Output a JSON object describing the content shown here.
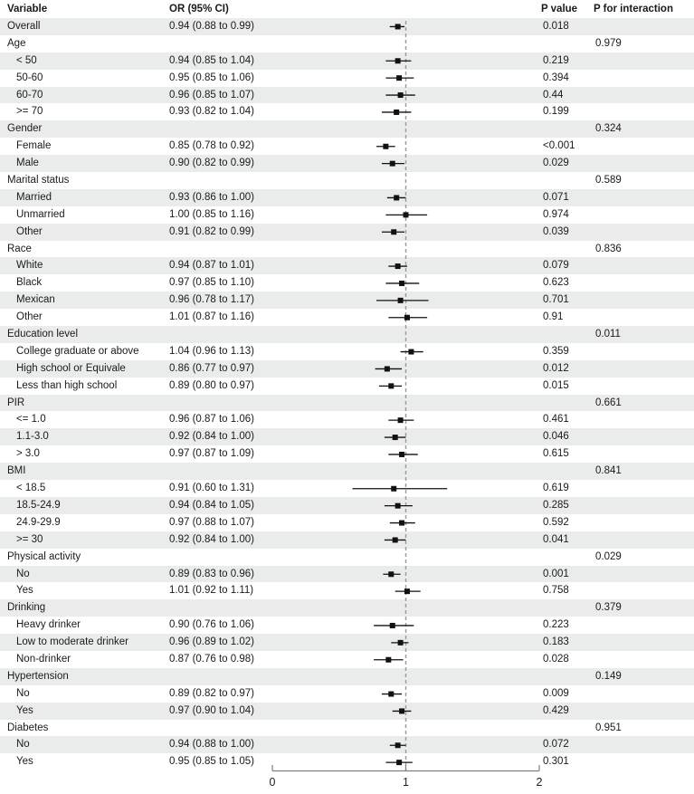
{
  "header": {
    "variable": "Variable",
    "or_ci": "OR (95% CI)",
    "p_value": "P value",
    "p_interaction": "P for interaction"
  },
  "colors": {
    "row_shade": "#eaeceb",
    "marker": "#111111",
    "ci_line": "#111111",
    "reference_line": "#9a9a9a",
    "axis_line": "#808080",
    "text": "#1a1a1a"
  },
  "chart_data": {
    "type": "scatter",
    "subtype": "forest-plot",
    "x_axis": {
      "min": 0,
      "max": 2,
      "ticks": [
        0,
        1,
        2
      ],
      "tick_labels": [
        "0",
        "1",
        "2"
      ],
      "reference_line": 1
    },
    "rows": [
      {
        "label": "Overall",
        "indent": 0,
        "or_text": "0.94 (0.88 to 0.99)",
        "or": 0.94,
        "lo": 0.88,
        "hi": 0.99,
        "p": "0.018",
        "p_int": ""
      },
      {
        "label": "Age",
        "indent": 0,
        "or_text": "",
        "or": null,
        "lo": null,
        "hi": null,
        "p": "",
        "p_int": "0.979"
      },
      {
        "label": "< 50",
        "indent": 1,
        "or_text": "0.94 (0.85 to 1.04)",
        "or": 0.94,
        "lo": 0.85,
        "hi": 1.04,
        "p": "0.219",
        "p_int": ""
      },
      {
        "label": "50-60",
        "indent": 1,
        "or_text": "0.95 (0.85 to 1.06)",
        "or": 0.95,
        "lo": 0.85,
        "hi": 1.06,
        "p": "0.394",
        "p_int": ""
      },
      {
        "label": "60-70",
        "indent": 1,
        "or_text": "0.96 (0.85 to 1.07)",
        "or": 0.96,
        "lo": 0.85,
        "hi": 1.07,
        "p": "0.44",
        "p_int": ""
      },
      {
        "label": ">= 70",
        "indent": 1,
        "or_text": "0.93 (0.82 to 1.04)",
        "or": 0.93,
        "lo": 0.82,
        "hi": 1.04,
        "p": "0.199",
        "p_int": ""
      },
      {
        "label": "Gender",
        "indent": 0,
        "or_text": "",
        "or": null,
        "lo": null,
        "hi": null,
        "p": "",
        "p_int": "0.324"
      },
      {
        "label": "Female",
        "indent": 1,
        "or_text": "0.85 (0.78 to 0.92)",
        "or": 0.85,
        "lo": 0.78,
        "hi": 0.92,
        "p": "<0.001",
        "p_int": ""
      },
      {
        "label": "Male",
        "indent": 1,
        "or_text": "0.90 (0.82 to 0.99)",
        "or": 0.9,
        "lo": 0.82,
        "hi": 0.99,
        "p": "0.029",
        "p_int": ""
      },
      {
        "label": "Marital status",
        "indent": 0,
        "or_text": "",
        "or": null,
        "lo": null,
        "hi": null,
        "p": "",
        "p_int": "0.589"
      },
      {
        "label": "Married",
        "indent": 1,
        "or_text": "0.93 (0.86 to 1.00)",
        "or": 0.93,
        "lo": 0.86,
        "hi": 1.0,
        "p": "0.071",
        "p_int": ""
      },
      {
        "label": "Unmarried",
        "indent": 1,
        "or_text": "1.00 (0.85 to 1.16)",
        "or": 1.0,
        "lo": 0.85,
        "hi": 1.16,
        "p": "0.974",
        "p_int": ""
      },
      {
        "label": "Other",
        "indent": 1,
        "or_text": "0.91 (0.82 to 0.99)",
        "or": 0.91,
        "lo": 0.82,
        "hi": 0.99,
        "p": "0.039",
        "p_int": ""
      },
      {
        "label": "Race",
        "indent": 0,
        "or_text": "",
        "or": null,
        "lo": null,
        "hi": null,
        "p": "",
        "p_int": "0.836"
      },
      {
        "label": "White",
        "indent": 1,
        "or_text": "0.94 (0.87 to 1.01)",
        "or": 0.94,
        "lo": 0.87,
        "hi": 1.01,
        "p": "0.079",
        "p_int": ""
      },
      {
        "label": "Black",
        "indent": 1,
        "or_text": "0.97 (0.85 to 1.10)",
        "or": 0.97,
        "lo": 0.85,
        "hi": 1.1,
        "p": "0.623",
        "p_int": ""
      },
      {
        "label": "Mexican",
        "indent": 1,
        "or_text": "0.96 (0.78 to 1.17)",
        "or": 0.96,
        "lo": 0.78,
        "hi": 1.17,
        "p": "0.701",
        "p_int": ""
      },
      {
        "label": "Other",
        "indent": 1,
        "or_text": "1.01 (0.87 to 1.16)",
        "or": 1.01,
        "lo": 0.87,
        "hi": 1.16,
        "p": "0.91",
        "p_int": ""
      },
      {
        "label": "Education level",
        "indent": 0,
        "or_text": "",
        "or": null,
        "lo": null,
        "hi": null,
        "p": "",
        "p_int": "0.011"
      },
      {
        "label": "College graduate or above",
        "indent": 1,
        "or_text": "1.04 (0.96 to 1.13)",
        "or": 1.04,
        "lo": 0.96,
        "hi": 1.13,
        "p": "0.359",
        "p_int": ""
      },
      {
        "label": "High school or Equivale",
        "indent": 1,
        "or_text": "0.86 (0.77 to 0.97)",
        "or": 0.86,
        "lo": 0.77,
        "hi": 0.97,
        "p": "0.012",
        "p_int": ""
      },
      {
        "label": "Less than high school",
        "indent": 1,
        "or_text": "0.89 (0.80 to 0.97)",
        "or": 0.89,
        "lo": 0.8,
        "hi": 0.97,
        "p": "0.015",
        "p_int": ""
      },
      {
        "label": "PIR",
        "indent": 0,
        "or_text": "",
        "or": null,
        "lo": null,
        "hi": null,
        "p": "",
        "p_int": "0.661"
      },
      {
        "label": "<= 1.0",
        "indent": 1,
        "or_text": "0.96 (0.87 to 1.06)",
        "or": 0.96,
        "lo": 0.87,
        "hi": 1.06,
        "p": "0.461",
        "p_int": ""
      },
      {
        "label": "1.1-3.0",
        "indent": 1,
        "or_text": "0.92 (0.84 to 1.00)",
        "or": 0.92,
        "lo": 0.84,
        "hi": 1.0,
        "p": "0.046",
        "p_int": ""
      },
      {
        "label": "> 3.0",
        "indent": 1,
        "or_text": "0.97 (0.87 to 1.09)",
        "or": 0.97,
        "lo": 0.87,
        "hi": 1.09,
        "p": "0.615",
        "p_int": ""
      },
      {
        "label": "BMI",
        "indent": 0,
        "or_text": "",
        "or": null,
        "lo": null,
        "hi": null,
        "p": "",
        "p_int": "0.841"
      },
      {
        "label": "< 18.5",
        "indent": 1,
        "or_text": "0.91 (0.60 to 1.31)",
        "or": 0.91,
        "lo": 0.6,
        "hi": 1.31,
        "p": "0.619",
        "p_int": ""
      },
      {
        "label": "18.5-24.9",
        "indent": 1,
        "or_text": "0.94 (0.84 to 1.05)",
        "or": 0.94,
        "lo": 0.84,
        "hi": 1.05,
        "p": "0.285",
        "p_int": ""
      },
      {
        "label": "24.9-29.9",
        "indent": 1,
        "or_text": "0.97 (0.88 to 1.07)",
        "or": 0.97,
        "lo": 0.88,
        "hi": 1.07,
        "p": "0.592",
        "p_int": ""
      },
      {
        "label": ">= 30",
        "indent": 1,
        "or_text": "0.92 (0.84 to 1.00)",
        "or": 0.92,
        "lo": 0.84,
        "hi": 1.0,
        "p": "0.041",
        "p_int": ""
      },
      {
        "label": "Physical activity",
        "indent": 0,
        "or_text": "",
        "or": null,
        "lo": null,
        "hi": null,
        "p": "",
        "p_int": "0.029"
      },
      {
        "label": "No",
        "indent": 1,
        "or_text": "0.89 (0.83 to 0.96)",
        "or": 0.89,
        "lo": 0.83,
        "hi": 0.96,
        "p": "0.001",
        "p_int": ""
      },
      {
        "label": "Yes",
        "indent": 1,
        "or_text": "1.01 (0.92 to 1.11)",
        "or": 1.01,
        "lo": 0.92,
        "hi": 1.11,
        "p": "0.758",
        "p_int": ""
      },
      {
        "label": "Drinking",
        "indent": 0,
        "or_text": "",
        "or": null,
        "lo": null,
        "hi": null,
        "p": "",
        "p_int": "0.379"
      },
      {
        "label": "Heavy drinker",
        "indent": 1,
        "or_text": "0.90 (0.76 to 1.06)",
        "or": 0.9,
        "lo": 0.76,
        "hi": 1.06,
        "p": "0.223",
        "p_int": ""
      },
      {
        "label": "Low to moderate drinker",
        "indent": 1,
        "or_text": "0.96 (0.89 to 1.02)",
        "or": 0.96,
        "lo": 0.89,
        "hi": 1.02,
        "p": "0.183",
        "p_int": ""
      },
      {
        "label": "Non-drinker",
        "indent": 1,
        "or_text": "0.87 (0.76 to 0.98)",
        "or": 0.87,
        "lo": 0.76,
        "hi": 0.98,
        "p": "0.028",
        "p_int": ""
      },
      {
        "label": "Hypertension",
        "indent": 0,
        "or_text": "",
        "or": null,
        "lo": null,
        "hi": null,
        "p": "",
        "p_int": "0.149"
      },
      {
        "label": "No",
        "indent": 1,
        "or_text": "0.89 (0.82 to 0.97)",
        "or": 0.89,
        "lo": 0.82,
        "hi": 0.97,
        "p": "0.009",
        "p_int": ""
      },
      {
        "label": "Yes",
        "indent": 1,
        "or_text": "0.97 (0.90 to 1.04)",
        "or": 0.97,
        "lo": 0.9,
        "hi": 1.04,
        "p": "0.429",
        "p_int": ""
      },
      {
        "label": "Diabetes",
        "indent": 0,
        "or_text": "",
        "or": null,
        "lo": null,
        "hi": null,
        "p": "",
        "p_int": "0.951"
      },
      {
        "label": "No",
        "indent": 1,
        "or_text": "0.94 (0.88 to 1.00)",
        "or": 0.94,
        "lo": 0.88,
        "hi": 1.0,
        "p": "0.072",
        "p_int": ""
      },
      {
        "label": "Yes",
        "indent": 1,
        "or_text": "0.95 (0.85 to 1.05)",
        "or": 0.95,
        "lo": 0.85,
        "hi": 1.05,
        "p": "0.301",
        "p_int": ""
      }
    ]
  }
}
